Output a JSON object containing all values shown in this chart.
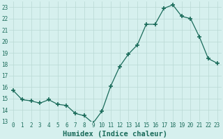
{
  "x": [
    0,
    1,
    2,
    3,
    4,
    5,
    6,
    7,
    8,
    9,
    10,
    11,
    12,
    13,
    14,
    15,
    16,
    17,
    18,
    19,
    20,
    21,
    22,
    23
  ],
  "y": [
    15.7,
    14.9,
    14.8,
    14.6,
    14.9,
    14.5,
    14.4,
    13.7,
    13.5,
    12.85,
    13.9,
    16.1,
    17.8,
    18.9,
    19.7,
    21.5,
    21.5,
    22.9,
    23.2,
    22.2,
    22.0,
    20.4,
    18.5,
    18.1
  ],
  "line_color": "#1a6b5a",
  "marker": "+",
  "marker_size": 4,
  "marker_lw": 1.2,
  "bg_color": "#d6f0ee",
  "grid_color": "#b8d8d4",
  "xlabel": "Humidex (Indice chaleur)",
  "ylim": [
    13,
    23.5
  ],
  "xlim": [
    -0.5,
    23.5
  ],
  "yticks": [
    13,
    14,
    15,
    16,
    17,
    18,
    19,
    20,
    21,
    22,
    23
  ],
  "xticks": [
    0,
    1,
    2,
    3,
    4,
    5,
    6,
    7,
    8,
    9,
    10,
    11,
    12,
    13,
    14,
    15,
    16,
    17,
    18,
    19,
    20,
    21,
    22,
    23
  ],
  "tick_color": "#1a6b5a",
  "tick_label_fontsize": 5.5,
  "xlabel_fontsize": 7.5,
  "line_width": 0.9
}
